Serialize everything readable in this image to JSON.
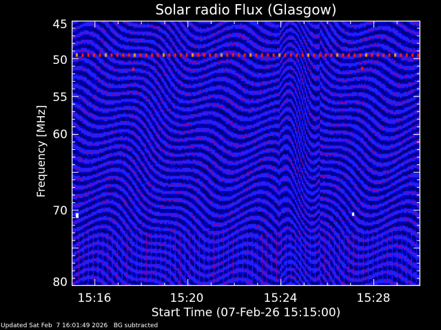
{
  "chart_data": {
    "type": "heatmap",
    "title": "Solar radio Flux (Glasgow)",
    "xlabel": "Start Time (07-Feb-26 15:15:00)",
    "ylabel": "Frequency [MHz]",
    "x_range": [
      "15:15",
      "15:30"
    ],
    "y_range": [
      45,
      80
    ],
    "y_inverted": true,
    "x_ticks": [
      "15:16",
      "15:20",
      "15:24",
      "15:28"
    ],
    "y_ticks": [
      45,
      50,
      55,
      60,
      70,
      80
    ],
    "colormap": [
      "#00006a",
      "#0000c8",
      "#2020ff",
      "#8000a0",
      "#ff2000",
      "#ffa000",
      "#ffffff"
    ]
  },
  "footer": {
    "updated": "Updated Sat Feb  7 16:01:49 2026",
    "bg": "BG subtracted"
  }
}
